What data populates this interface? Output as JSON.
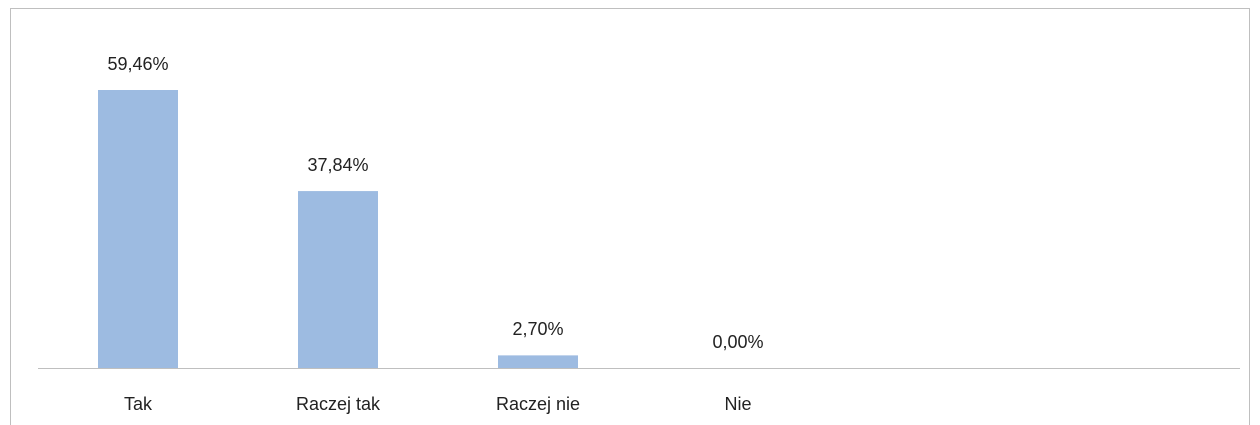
{
  "chart_data": {
    "type": "bar",
    "categories": [
      "Tak",
      "Raczej tak",
      "Raczej nie",
      "Nie"
    ],
    "values": [
      59.46,
      37.84,
      2.7,
      0.0
    ],
    "value_labels": [
      "59,46%",
      "37,84%",
      "2,70%",
      "0,00%"
    ],
    "color": "#9dbbe1"
  }
}
